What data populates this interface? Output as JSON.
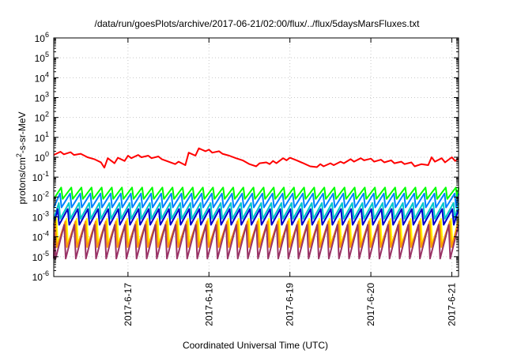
{
  "chart_data": {
    "type": "line",
    "title": "/data/run/goesPlots/archive/2017-06-21/02:00/flux/../flux/5daysMarsFluxes.txt",
    "xlabel": "Coordinated Universal Time (UTC)",
    "ylabel": {
      "base": "protons/cm",
      "sup": "2",
      "tail": "-s-sr-MeV"
    },
    "y_scale": "log",
    "ylim": [
      1e-06,
      1000000.0
    ],
    "y_ticks": [
      {
        "value": 1e-06,
        "exp": "-6"
      },
      {
        "value": 1e-05,
        "exp": "-5"
      },
      {
        "value": 0.0001,
        "exp": "-4"
      },
      {
        "value": 0.001,
        "exp": "-3"
      },
      {
        "value": 0.01,
        "exp": "-2"
      },
      {
        "value": 0.1,
        "exp": "-1"
      },
      {
        "value": 1.0,
        "exp": "0"
      },
      {
        "value": 10.0,
        "exp": "1"
      },
      {
        "value": 100.0,
        "exp": "2"
      },
      {
        "value": 1000.0,
        "exp": "3"
      },
      {
        "value": 10000.0,
        "exp": "4"
      },
      {
        "value": 100000.0,
        "exp": "5"
      },
      {
        "value": 1000000.0,
        "exp": "6"
      }
    ],
    "xlim": [
      "2017-06-16T02:00",
      "2017-06-21T02:00"
    ],
    "x_ticks": [
      {
        "value": "2017-06-17T00:00",
        "label": "2017-6-17"
      },
      {
        "value": "2017-06-18T00:00",
        "label": "2017-6-18"
      },
      {
        "value": "2017-06-19T00:00",
        "label": "2017-6-19"
      },
      {
        "value": "2017-06-20T00:00",
        "label": "2017-6-20"
      },
      {
        "value": "2017-06-21T00:00",
        "label": "2017-6-21"
      }
    ],
    "grid": true,
    "legend": "none",
    "series": [
      {
        "color": "#ff0000",
        "points": [
          [
            "2017-06-16T02:00",
            1.3
          ],
          [
            "2017-06-16T04:00",
            1.9
          ],
          [
            "2017-06-16T05:00",
            1.4
          ],
          [
            "2017-06-16T07:00",
            1.8
          ],
          [
            "2017-06-16T08:00",
            1.3
          ],
          [
            "2017-06-16T10:00",
            1.5
          ],
          [
            "2017-06-16T12:00",
            1.0
          ],
          [
            "2017-06-16T14:00",
            0.8
          ],
          [
            "2017-06-16T16:00",
            0.55
          ],
          [
            "2017-06-16T17:00",
            0.3
          ],
          [
            "2017-06-16T18:00",
            0.9
          ],
          [
            "2017-06-16T20:00",
            0.5
          ],
          [
            "2017-06-16T21:00",
            0.95
          ],
          [
            "2017-06-16T23:00",
            0.65
          ],
          [
            "2017-06-17T00:00",
            1.2
          ],
          [
            "2017-06-17T01:00",
            0.9
          ],
          [
            "2017-06-17T03:00",
            1.3
          ],
          [
            "2017-06-17T04:00",
            1.0
          ],
          [
            "2017-06-17T06:00",
            1.2
          ],
          [
            "2017-06-17T07:00",
            0.9
          ],
          [
            "2017-06-17T09:00",
            1.1
          ],
          [
            "2017-06-17T10:00",
            0.8
          ],
          [
            "2017-06-17T12:00",
            0.6
          ],
          [
            "2017-06-17T14:00",
            0.45
          ],
          [
            "2017-06-17T15:00",
            0.6
          ],
          [
            "2017-06-17T17:00",
            0.4
          ],
          [
            "2017-06-17T18:00",
            1.7
          ],
          [
            "2017-06-17T20:00",
            1.2
          ],
          [
            "2017-06-17T21:00",
            2.8
          ],
          [
            "2017-06-17T23:00",
            2.0
          ],
          [
            "2017-06-18T00:00",
            2.4
          ],
          [
            "2017-06-18T01:00",
            1.7
          ],
          [
            "2017-06-18T03:00",
            2.0
          ],
          [
            "2017-06-18T04:00",
            1.5
          ],
          [
            "2017-06-18T06:00",
            1.2
          ],
          [
            "2017-06-18T08:00",
            0.9
          ],
          [
            "2017-06-18T10:00",
            0.7
          ],
          [
            "2017-06-18T12:00",
            0.45
          ],
          [
            "2017-06-18T14:00",
            0.35
          ],
          [
            "2017-06-18T15:00",
            0.5
          ],
          [
            "2017-06-18T17:00",
            0.55
          ],
          [
            "2017-06-18T18:00",
            0.45
          ],
          [
            "2017-06-18T19:00",
            0.65
          ],
          [
            "2017-06-18T20:00",
            0.5
          ],
          [
            "2017-06-18T22:00",
            0.9
          ],
          [
            "2017-06-18T23:00",
            0.7
          ],
          [
            "2017-06-19T00:00",
            0.95
          ],
          [
            "2017-06-19T02:00",
            0.7
          ],
          [
            "2017-06-19T04:00",
            0.5
          ],
          [
            "2017-06-19T06:00",
            0.35
          ],
          [
            "2017-06-19T08:00",
            0.32
          ],
          [
            "2017-06-19T09:00",
            0.45
          ],
          [
            "2017-06-19T10:00",
            0.35
          ],
          [
            "2017-06-19T12:00",
            0.5
          ],
          [
            "2017-06-19T13:00",
            0.4
          ],
          [
            "2017-06-19T15:00",
            0.6
          ],
          [
            "2017-06-19T16:00",
            0.5
          ],
          [
            "2017-06-19T18:00",
            0.8
          ],
          [
            "2017-06-19T19:00",
            0.6
          ],
          [
            "2017-06-19T21:00",
            0.9
          ],
          [
            "2017-06-19T22:00",
            0.7
          ],
          [
            "2017-06-20T00:00",
            0.85
          ],
          [
            "2017-06-20T01:00",
            0.6
          ],
          [
            "2017-06-20T03:00",
            0.75
          ],
          [
            "2017-06-20T04:00",
            0.55
          ],
          [
            "2017-06-20T06:00",
            0.7
          ],
          [
            "2017-06-20T07:00",
            0.5
          ],
          [
            "2017-06-20T09:00",
            0.6
          ],
          [
            "2017-06-20T10:00",
            0.45
          ],
          [
            "2017-06-20T12:00",
            0.55
          ],
          [
            "2017-06-20T13:00",
            0.35
          ],
          [
            "2017-06-20T15:00",
            0.45
          ],
          [
            "2017-06-20T17:00",
            0.4
          ],
          [
            "2017-06-20T18:00",
            1.0
          ],
          [
            "2017-06-20T19:00",
            0.6
          ],
          [
            "2017-06-20T21:00",
            0.9
          ],
          [
            "2017-06-20T22:00",
            0.55
          ],
          [
            "2017-06-21T00:00",
            1.0
          ],
          [
            "2017-06-21T01:00",
            0.65
          ],
          [
            "2017-06-21T02:00",
            0.85
          ]
        ]
      },
      {
        "color": "#00ff00",
        "pattern": "sawtooth",
        "peak": 0.03,
        "trough": 0.008
      },
      {
        "color": "#0080ff",
        "pattern": "sawtooth",
        "peak": 0.015,
        "trough": 0.003
      },
      {
        "color": "#00c8c8",
        "pattern": "sawtooth",
        "peak": 0.005,
        "trough": 0.0008
      },
      {
        "color": "#0000cc",
        "pattern": "sawtooth",
        "peak": 0.0025,
        "trough": 0.0004
      },
      {
        "color": "#ffff00",
        "pattern": "sawtooth",
        "peak": 0.0008,
        "trough": 4e-05
      },
      {
        "color": "#ff9900",
        "pattern": "sawtooth",
        "peak": 0.0006,
        "trough": 3e-05
      },
      {
        "color": "#993366",
        "pattern": "sawtooth",
        "peak": 0.0004,
        "trough": 8e-06
      }
    ],
    "sawtooth_period_hours": 3
  }
}
